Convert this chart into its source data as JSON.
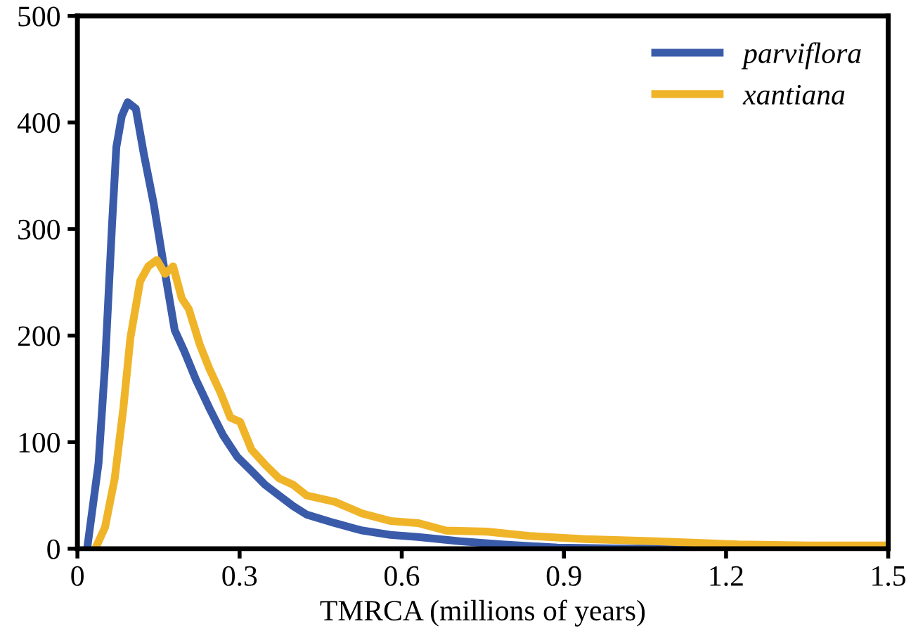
{
  "chart_data": {
    "type": "line",
    "xlabel": "TMRCA (millions of years)",
    "xlim": [
      0,
      1.5
    ],
    "xticks": [
      0,
      0.3,
      0.6,
      0.9,
      1.2,
      1.5
    ],
    "ylim": [
      0,
      500
    ],
    "yticks": [
      0,
      100,
      200,
      300,
      400,
      500
    ],
    "grid": false,
    "legend": "top right",
    "marker": "none",
    "line_style": "solid",
    "series": [
      {
        "name": "parviflora",
        "color": "#3a5ba9",
        "x": [
          0.018,
          0.039,
          0.051,
          0.064,
          0.072,
          0.082,
          0.093,
          0.108,
          0.123,
          0.141,
          0.16,
          0.18,
          0.198,
          0.219,
          0.244,
          0.27,
          0.296,
          0.322,
          0.347,
          0.373,
          0.399,
          0.424,
          0.476,
          0.527,
          0.579,
          0.63,
          0.707,
          0.785,
          0.888,
          1.016,
          1.5
        ],
        "values": [
          0,
          80,
          172,
          304,
          377,
          406,
          419,
          413,
          370,
          324,
          265,
          205,
          185,
          159,
          132,
          106,
          86,
          73,
          60,
          50,
          40,
          32,
          24,
          17,
          13,
          11,
          7,
          4,
          1,
          0,
          0
        ]
      },
      {
        "name": "xantiana",
        "color": "#f0b429",
        "x": [
          0.033,
          0.051,
          0.069,
          0.085,
          0.098,
          0.116,
          0.131,
          0.147,
          0.162,
          0.177,
          0.193,
          0.206,
          0.226,
          0.244,
          0.265,
          0.283,
          0.301,
          0.322,
          0.347,
          0.373,
          0.399,
          0.424,
          0.476,
          0.527,
          0.579,
          0.63,
          0.682,
          0.758,
          0.836,
          0.939,
          1.068,
          1.222,
          1.351,
          1.5
        ],
        "values": [
          0,
          20,
          66,
          132,
          198,
          251,
          265,
          271,
          258,
          265,
          235,
          225,
          192,
          169,
          146,
          123,
          119,
          93,
          79,
          66,
          60,
          50,
          44,
          33,
          26,
          24,
          17,
          16,
          12,
          9,
          7,
          4,
          3,
          3
        ]
      }
    ]
  }
}
